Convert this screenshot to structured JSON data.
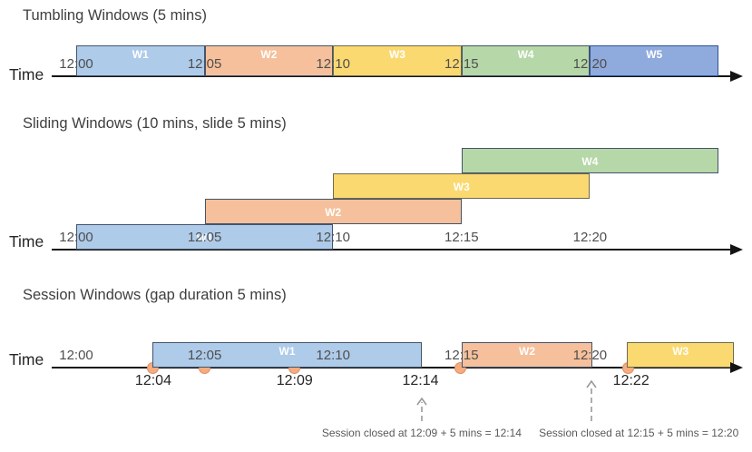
{
  "diagram": {
    "palette": {
      "blue": {
        "fill": "#AECBE9",
        "border": "#44546A"
      },
      "orange": {
        "fill": "#F5C09B",
        "border": "#44546A"
      },
      "yellow": {
        "fill": "#FBD971",
        "border": "#6E6A4F"
      },
      "green": {
        "fill": "#B6D7A7",
        "border": "#44546A"
      },
      "periwinkle": {
        "fill": "#8FAADC",
        "border": "#2F5597"
      },
      "event_dot": {
        "fill": "#F4AC80",
        "border": "#DE8F62"
      },
      "axis": "#141414",
      "annotation_arrow": "#9A9A9A"
    },
    "sections": [
      {
        "id": "tumbling",
        "title": "Tumbling Windows (5 mins)",
        "axis_label": "Time",
        "ticks": [
          {
            "min": 0,
            "label": "12:00"
          },
          {
            "min": 5,
            "label": "12:05"
          },
          {
            "min": 10,
            "label": "12:10"
          },
          {
            "min": 15,
            "label": "12:15"
          },
          {
            "min": 20,
            "label": "12:20"
          }
        ],
        "windows": [
          {
            "name": "W1",
            "color": "blue",
            "start": 0,
            "end": 5
          },
          {
            "name": "W2",
            "color": "orange",
            "start": 5,
            "end": 10
          },
          {
            "name": "W3",
            "color": "yellow",
            "start": 10,
            "end": 15
          },
          {
            "name": "W4",
            "color": "green",
            "start": 15,
            "end": 20
          },
          {
            "name": "W5",
            "color": "periwinkle",
            "start": 20,
            "end": 25
          }
        ]
      },
      {
        "id": "sliding",
        "title": "Sliding Windows (10 mins, slide 5 mins)",
        "axis_label": "Time",
        "ticks": [
          {
            "min": 0,
            "label": "12:00"
          },
          {
            "min": 5,
            "label": "12:05"
          },
          {
            "min": 10,
            "label": "12:10"
          },
          {
            "min": 15,
            "label": "12:15"
          },
          {
            "min": 20,
            "label": "12:20"
          }
        ],
        "windows": [
          {
            "name": "W1",
            "color": "blue",
            "start": 0,
            "end": 10,
            "row": 0
          },
          {
            "name": "W2",
            "color": "orange",
            "start": 5,
            "end": 15,
            "row": 1
          },
          {
            "name": "W3",
            "color": "yellow",
            "start": 10,
            "end": 20,
            "row": 2
          },
          {
            "name": "W4",
            "color": "green",
            "start": 15,
            "end": 25,
            "row": 3
          }
        ]
      },
      {
        "id": "session",
        "title": "Session Windows (gap duration 5 mins)",
        "axis_label": "Time",
        "ticks": [
          {
            "min": 0,
            "label": "12:00"
          },
          {
            "min": 5,
            "label": "12:05"
          },
          {
            "min": 10,
            "label": "12:10"
          },
          {
            "min": 15,
            "label": "12:15"
          },
          {
            "min": 20,
            "label": "12:20"
          }
        ],
        "windows": [
          {
            "name": "W1",
            "color": "blue",
            "start": 2.97,
            "end": 13.45
          },
          {
            "name": "W2",
            "color": "orange",
            "start": 15.0,
            "end": 20.1
          },
          {
            "name": "W3",
            "color": "yellow",
            "start": 21.45,
            "end": 25.6
          }
        ],
        "events": [
          {
            "min": 2.97
          },
          {
            "min": 4.98
          },
          {
            "min": 8.5
          },
          {
            "min": 14.97
          },
          {
            "min": 21.47
          }
        ],
        "event_labels": [
          {
            "min": 3.0,
            "label": "12:04"
          },
          {
            "min": 8.5,
            "label": "12:09"
          },
          {
            "min": 13.4,
            "label": "12:14"
          },
          {
            "min": 21.6,
            "label": "12:22"
          }
        ],
        "annotations": [
          {
            "text": "Session closed at 12:09 + 5 mins = 12:14",
            "arrow_min": 13.45,
            "text_min": 13.45,
            "arrow_height": 27
          },
          {
            "text": "Session closed at 12:15 + 5 mins = 12:20",
            "arrow_min": 20.06,
            "text_min": 21.9,
            "arrow_height": 46
          }
        ]
      }
    ]
  }
}
